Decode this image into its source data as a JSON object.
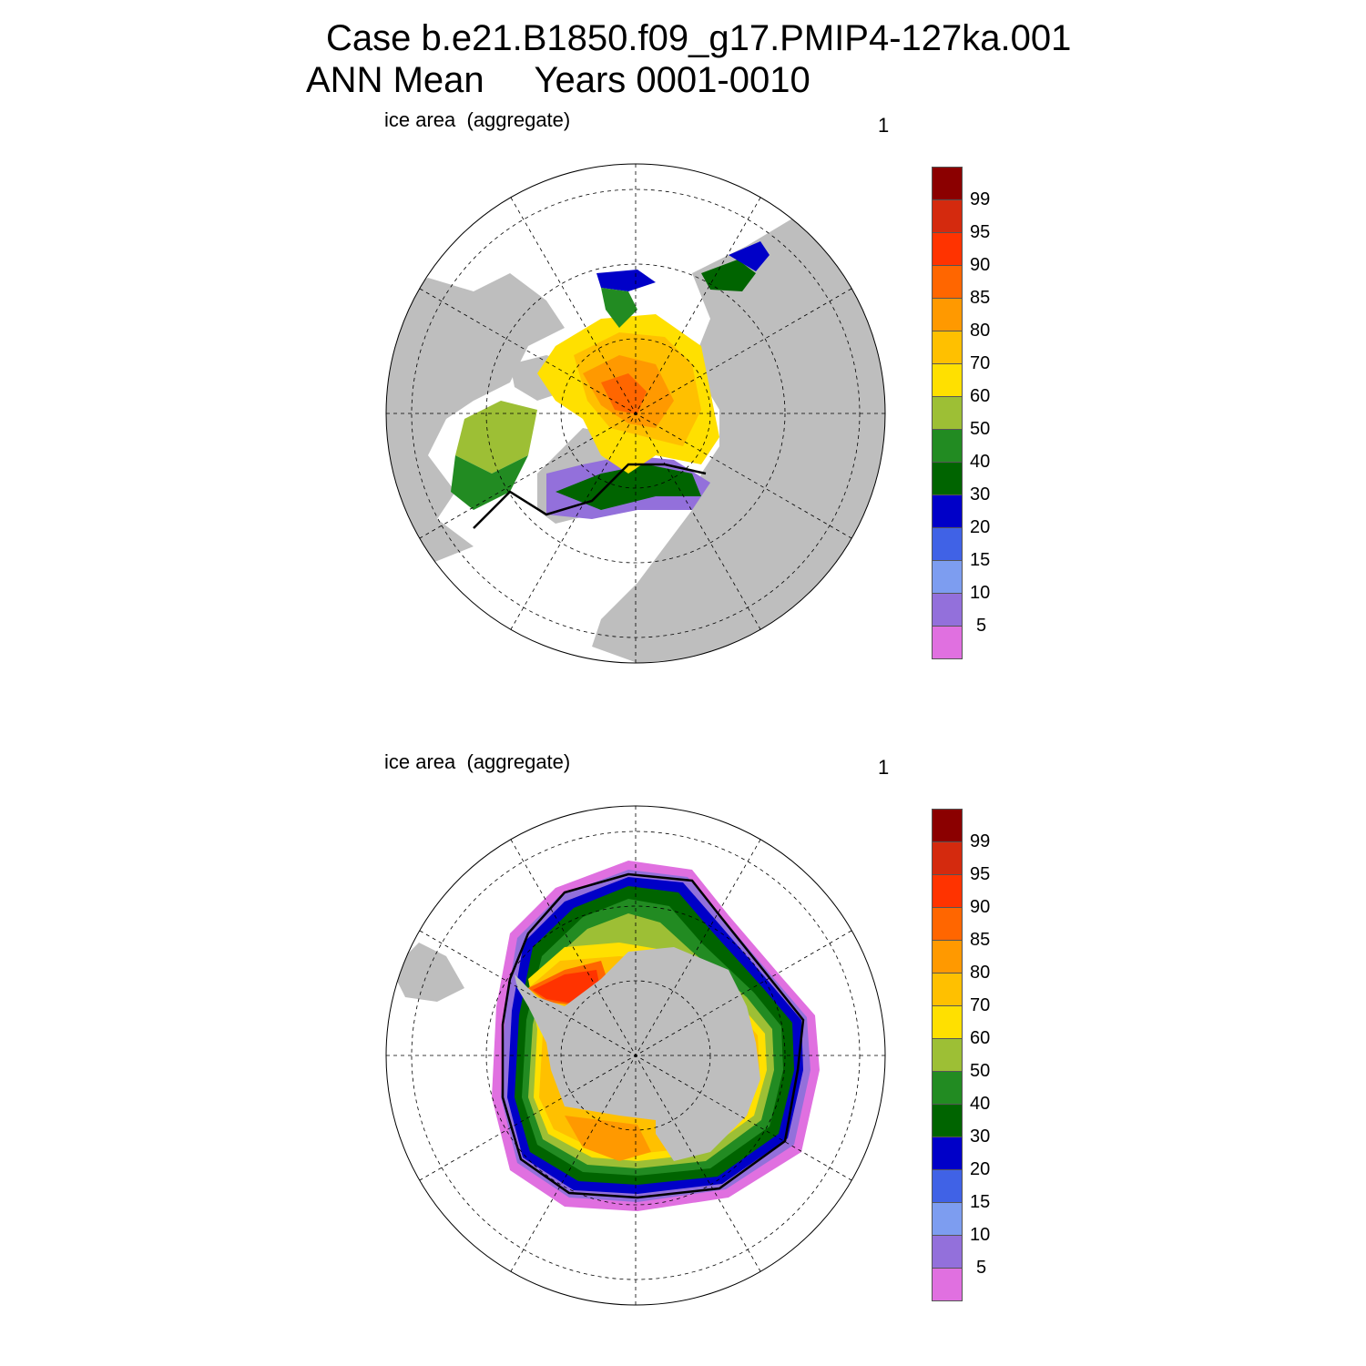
{
  "title": {
    "line1": "Case b.e21.B1850.f09_g17.PMIP4-127ka.001",
    "line2": "ANN Mean     Years 0001-0010"
  },
  "panels": [
    {
      "id": "nh",
      "variable_label": "ice area  (aggregate)",
      "number_label": "1"
    },
    {
      "id": "sh",
      "variable_label": "ice area  (aggregate)",
      "number_label": "1"
    }
  ],
  "colorbar": {
    "colors": [
      "#8b0000",
      "#d42a0e",
      "#ff3300",
      "#ff6600",
      "#ff9900",
      "#ffc000",
      "#ffe000",
      "#9dbf35",
      "#228b22",
      "#006400",
      "#0000c8",
      "#4062e6",
      "#7d9df0",
      "#9370db",
      "#e070e0"
    ],
    "labels": [
      "99",
      "95",
      "90",
      "85",
      "80",
      "70",
      "60",
      "50",
      "40",
      "30",
      "20",
      "15",
      "10",
      "5"
    ]
  },
  "chart_data": {
    "type": "heatmap",
    "title": "Case b.e21.B1850.f09_g17.PMIP4-127ka.001 ANN Mean Years 0001-0010",
    "maps": [
      {
        "hemisphere": "north",
        "variable": "ice area  (aggregate)",
        "label": "1"
      },
      {
        "hemisphere": "south",
        "variable": "ice area  (aggregate)",
        "label": "1"
      }
    ],
    "color_levels": [
      5,
      10,
      15,
      20,
      30,
      40,
      50,
      60,
      70,
      80,
      85,
      90,
      95,
      99
    ],
    "projection": "polar stereographic",
    "legend": "right"
  }
}
